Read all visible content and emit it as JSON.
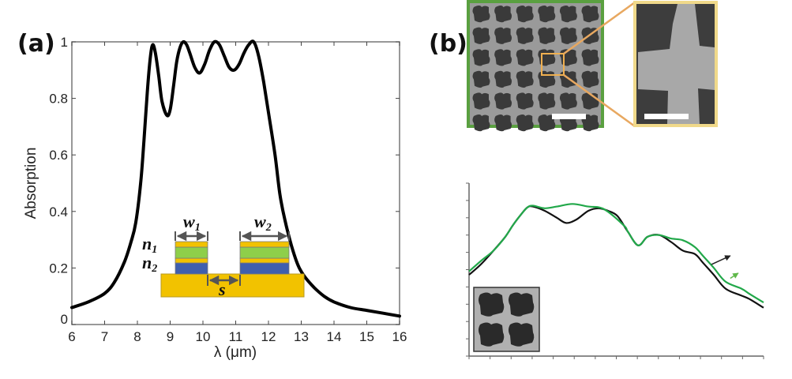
{
  "panels": {
    "a_label": "(a)",
    "b_label": "(b)"
  },
  "chart_data": [
    {
      "type": "line",
      "panel": "(a)",
      "title": "",
      "xlabel": "λ (μm)",
      "ylabel": "Absorption",
      "xlim": [
        6,
        16
      ],
      "ylim": [
        0,
        1
      ],
      "xticks": [
        6,
        7,
        8,
        9,
        10,
        11,
        12,
        13,
        14,
        15,
        16
      ],
      "yticks": [
        0,
        0.2,
        0.4,
        0.6,
        0.8,
        1
      ],
      "ytick_labels": [
        "0",
        "0.2",
        "0.4",
        "0.6",
        "0.8",
        "1"
      ],
      "grid": false,
      "legend": null,
      "series": [
        {
          "name": "Absorption",
          "color": "#000000",
          "x": [
            6.0,
            6.5,
            7.0,
            7.3,
            7.6,
            7.8,
            7.95,
            8.1,
            8.2,
            8.3,
            8.4,
            8.47,
            8.55,
            8.65,
            8.75,
            8.9,
            9.0,
            9.1,
            9.2,
            9.3,
            9.4,
            9.5,
            9.6,
            9.75,
            9.9,
            10.05,
            10.2,
            10.35,
            10.5,
            10.65,
            10.8,
            10.95,
            11.1,
            11.25,
            11.4,
            11.55,
            11.7,
            11.85,
            12.0,
            12.2,
            12.35,
            12.5,
            12.7,
            12.9,
            13.1,
            13.4,
            13.7,
            14.0,
            14.5,
            15.0,
            15.5,
            16.0
          ],
          "y": [
            0.06,
            0.08,
            0.11,
            0.15,
            0.22,
            0.29,
            0.36,
            0.5,
            0.65,
            0.82,
            0.95,
            0.99,
            0.96,
            0.88,
            0.79,
            0.74,
            0.76,
            0.84,
            0.93,
            0.98,
            1.0,
            0.99,
            0.96,
            0.91,
            0.89,
            0.92,
            0.97,
            1.0,
            0.99,
            0.95,
            0.91,
            0.9,
            0.92,
            0.96,
            0.99,
            1.0,
            0.95,
            0.86,
            0.75,
            0.6,
            0.46,
            0.37,
            0.28,
            0.21,
            0.17,
            0.13,
            0.1,
            0.08,
            0.06,
            0.05,
            0.04,
            0.03
          ]
        }
      ],
      "inset_schematic": {
        "labels": {
          "w1": "w",
          "w1_sub": "1",
          "w2": "w",
          "w2_sub": "2",
          "n1": "n",
          "n1_sub": "1",
          "n2": "n",
          "n2_sub": "2",
          "s": "s"
        },
        "layer_colors": {
          "gold": "#f2c200",
          "green": "#8ecf4a",
          "blue": "#3f5fae",
          "arrow": "#555555"
        }
      }
    },
    {
      "type": "line",
      "panel": "(b) lower",
      "title": "",
      "xlabel": "",
      "ylabel": "",
      "tick_labels_visible": false,
      "x_tick_count": 15,
      "y_tick_count": 11,
      "grid": false,
      "legend": null,
      "note": "relative units, normalized 0-1 on both axes",
      "xlim": [
        0,
        1
      ],
      "ylim": [
        0,
        1
      ],
      "series": [
        {
          "name": "black curve",
          "color": "#111111",
          "x": [
            0.0,
            0.04,
            0.083,
            0.123,
            0.15,
            0.177,
            0.198,
            0.217,
            0.257,
            0.298,
            0.33,
            0.365,
            0.405,
            0.44,
            0.472,
            0.504,
            0.539,
            0.574,
            0.606,
            0.646,
            0.686,
            0.726,
            0.767,
            0.794,
            0.831,
            0.871,
            0.925,
            0.952,
            1.0
          ],
          "y": [
            0.47,
            0.53,
            0.61,
            0.69,
            0.76,
            0.82,
            0.86,
            0.865,
            0.84,
            0.8,
            0.77,
            0.79,
            0.84,
            0.855,
            0.84,
            0.81,
            0.72,
            0.64,
            0.69,
            0.7,
            0.66,
            0.61,
            0.59,
            0.54,
            0.47,
            0.39,
            0.35,
            0.33,
            0.28
          ]
        },
        {
          "name": "green curve",
          "color": "#22a84a",
          "x": [
            0.0,
            0.04,
            0.083,
            0.123,
            0.15,
            0.177,
            0.198,
            0.217,
            0.257,
            0.298,
            0.351,
            0.405,
            0.458,
            0.526,
            0.539,
            0.574,
            0.606,
            0.646,
            0.686,
            0.726,
            0.767,
            0.794,
            0.831,
            0.871,
            0.925,
            0.952,
            1.0
          ],
          "y": [
            0.49,
            0.55,
            0.61,
            0.69,
            0.76,
            0.82,
            0.86,
            0.87,
            0.855,
            0.865,
            0.88,
            0.865,
            0.85,
            0.755,
            0.72,
            0.64,
            0.69,
            0.7,
            0.68,
            0.67,
            0.63,
            0.58,
            0.51,
            0.43,
            0.39,
            0.36,
            0.31
          ]
        }
      ],
      "annotations": [
        {
          "type": "arrow",
          "color": "#222222",
          "from": [
            0.823,
            0.53
          ],
          "to": [
            0.887,
            0.58
          ]
        },
        {
          "type": "arrow",
          "color": "#5fb84a",
          "from": [
            0.887,
            0.45
          ],
          "to": [
            0.914,
            0.48
          ]
        }
      ]
    }
  ],
  "sem_images": {
    "overview": {
      "border_color": "#5aa040",
      "scale_bar": true
    },
    "zoom": {
      "border_color": "#f0d98a",
      "scale_bar": true
    },
    "highlight_box_color": "#e8a860",
    "inset_border_color": "#333333"
  }
}
